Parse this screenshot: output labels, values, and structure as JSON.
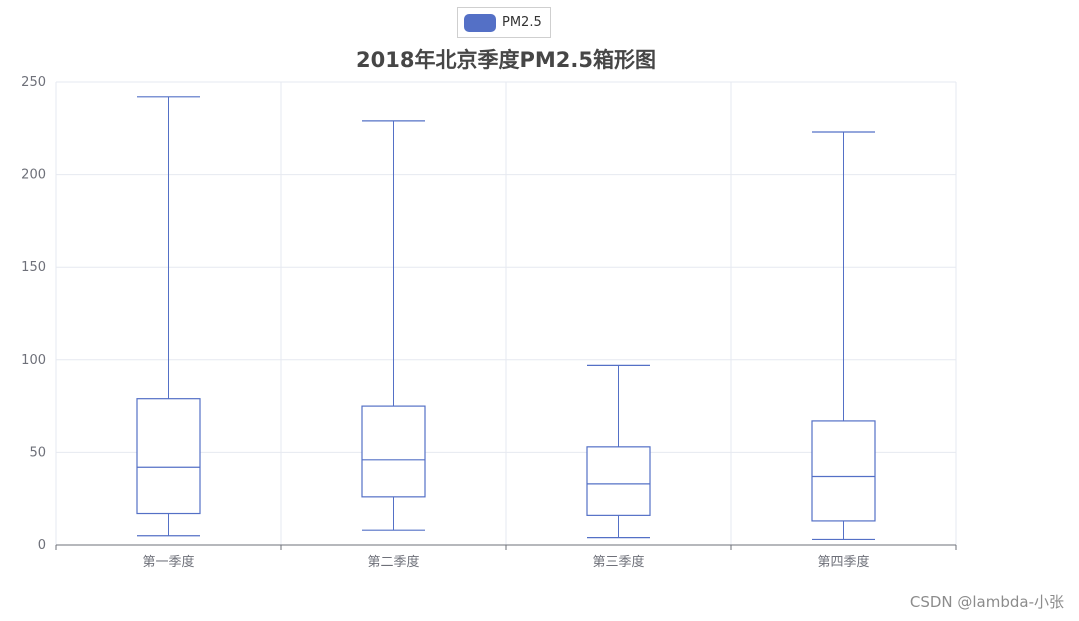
{
  "legend": {
    "label": "PM2.5",
    "color": "#5470c6"
  },
  "chart_data": {
    "type": "boxplot",
    "title": "2018年北京季度PM2.5箱形图",
    "xlabel": "",
    "ylabel": "",
    "ylim": [
      0,
      250
    ],
    "yticks": [
      0,
      50,
      100,
      150,
      200,
      250
    ],
    "grid": true,
    "legend_position": "top-center",
    "categories": [
      "第一季度",
      "第二季度",
      "第三季度",
      "第四季度"
    ],
    "series": [
      {
        "name": "PM2.5",
        "color": "#5470c6",
        "boxes": [
          {
            "min": 5,
            "q1": 17,
            "median": 42,
            "q3": 79,
            "max": 242
          },
          {
            "min": 8,
            "q1": 26,
            "median": 46,
            "q3": 75,
            "max": 229
          },
          {
            "min": 4,
            "q1": 16,
            "median": 33,
            "q3": 53,
            "max": 97
          },
          {
            "min": 3,
            "q1": 13,
            "median": 37,
            "q3": 67,
            "max": 223
          }
        ]
      }
    ]
  },
  "watermark": "CSDN @lambda-小张"
}
